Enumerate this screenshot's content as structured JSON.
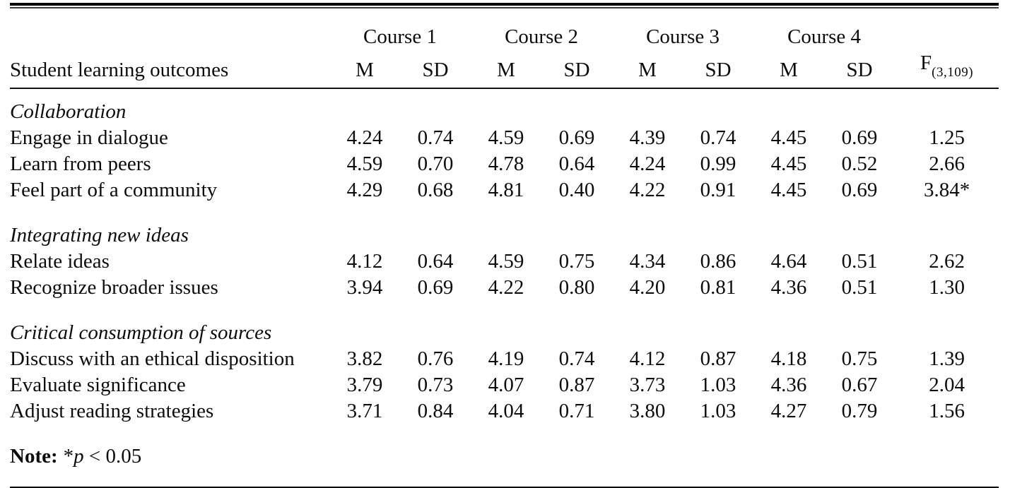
{
  "table": {
    "header": {
      "outcome_col_label": "Student learning outcomes",
      "course_labels": [
        "Course 1",
        "Course 2",
        "Course 3",
        "Course 4"
      ],
      "mean_label": "M",
      "sd_label": "SD",
      "f_label": "F",
      "f_subscript": "(3,109)"
    },
    "sections": [
      {
        "title": "Collaboration",
        "rows": [
          {
            "label": "Engage in dialogue",
            "values": [
              "4.24",
              "0.74",
              "4.59",
              "0.69",
              "4.39",
              "0.74",
              "4.45",
              "0.69",
              "1.25"
            ]
          },
          {
            "label": "Learn from peers",
            "values": [
              "4.59",
              "0.70",
              "4.78",
              "0.64",
              "4.24",
              "0.99",
              "4.45",
              "0.52",
              "2.66"
            ]
          },
          {
            "label": "Feel part of a community",
            "values": [
              "4.29",
              "0.68",
              "4.81",
              "0.40",
              "4.22",
              "0.91",
              "4.45",
              "0.69",
              "3.84*"
            ]
          }
        ]
      },
      {
        "title": "Integrating new ideas",
        "rows": [
          {
            "label": "Relate ideas",
            "values": [
              "4.12",
              "0.64",
              "4.59",
              "0.75",
              "4.34",
              "0.86",
              "4.64",
              "0.51",
              "2.62"
            ]
          },
          {
            "label": "Recognize broader issues",
            "values": [
              "3.94",
              "0.69",
              "4.22",
              "0.80",
              "4.20",
              "0.81",
              "4.36",
              "0.51",
              "1.30"
            ]
          }
        ]
      },
      {
        "title": "Critical consumption of sources",
        "rows": [
          {
            "label": "Discuss with an ethical disposition",
            "values": [
              "3.82",
              "0.76",
              "4.19",
              "0.74",
              "4.12",
              "0.87",
              "4.18",
              "0.75",
              "1.39"
            ]
          },
          {
            "label": "Evaluate significance",
            "values": [
              "3.79",
              "0.73",
              "4.07",
              "0.87",
              "3.73",
              "1.03",
              "4.36",
              "0.67",
              "2.04"
            ]
          },
          {
            "label": "Adjust reading strategies",
            "values": [
              "3.71",
              "0.84",
              "4.04",
              "0.71",
              "3.80",
              "1.03",
              "4.27",
              "0.79",
              "1.56"
            ]
          }
        ]
      }
    ],
    "note": {
      "label": "Note:",
      "star": "*",
      "p_symbol": "p",
      "condition": " < 0.05"
    }
  }
}
